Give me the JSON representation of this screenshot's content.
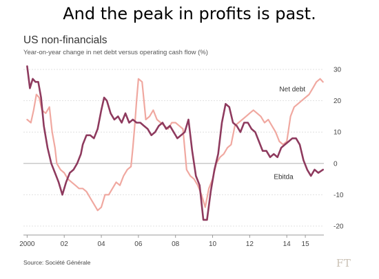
{
  "slide": {
    "title": "And the peak in profits is past."
  },
  "chart": {
    "title": "US non-financials",
    "subtitle": "Year-on-year change in net debt versus operating cash flow (%)",
    "source": "Source: Société Générale",
    "brand": "FT"
  },
  "colors": {
    "net_debt": "#f0a8a0",
    "ebitda": "#8e3a5e",
    "grid": "#d9d9d9",
    "zero_line": "#b8b8b8",
    "axis": "#999999"
  },
  "chart_data": {
    "type": "line",
    "title": "US non-financials",
    "subtitle": "Year-on-year change in net debt versus operating cash flow (%)",
    "xlabel": "",
    "ylabel": "",
    "x_range": [
      1999.8,
      2016.0
    ],
    "ylim": [
      -20,
      30
    ],
    "y_ticks": [
      -20,
      -10,
      0,
      10,
      20,
      30
    ],
    "y_axis_side": "right",
    "x_ticks": [
      {
        "value": 2000,
        "label": "2000"
      },
      {
        "value": 2002,
        "label": "02"
      },
      {
        "value": 2004,
        "label": "04"
      },
      {
        "value": 2006,
        "label": "06"
      },
      {
        "value": 2008,
        "label": "08"
      },
      {
        "value": 2010,
        "label": "10"
      },
      {
        "value": 2012,
        "label": "12"
      },
      {
        "value": 2014,
        "label": "14"
      },
      {
        "value": 2015,
        "label": "15"
      }
    ],
    "grid": "horizontal",
    "series": [
      {
        "name": "Net debt",
        "color": "#f0a8a0",
        "x": [
          2000.0,
          2000.2,
          2000.35,
          2000.5,
          2000.65,
          2000.8,
          2001.0,
          2001.2,
          2001.35,
          2001.5,
          2001.6,
          2001.7,
          2001.8,
          2002.0,
          2002.2,
          2002.4,
          2002.6,
          2002.8,
          2003.0,
          2003.2,
          2003.4,
          2003.6,
          2003.8,
          2004.0,
          2004.2,
          2004.4,
          2004.6,
          2004.8,
          2005.0,
          2005.2,
          2005.4,
          2005.6,
          2005.7,
          2005.8,
          2005.9,
          2006.0,
          2006.2,
          2006.4,
          2006.6,
          2006.8,
          2007.0,
          2007.2,
          2007.4,
          2007.6,
          2007.8,
          2008.0,
          2008.2,
          2008.4,
          2008.6,
          2008.8,
          2009.0,
          2009.2,
          2009.4,
          2009.6,
          2009.8,
          2010.0,
          2010.2,
          2010.4,
          2010.6,
          2010.8,
          2011.0,
          2011.2,
          2011.4,
          2011.6,
          2011.8,
          2012.0,
          2012.2,
          2012.4,
          2012.6,
          2012.8,
          2013.0,
          2013.2,
          2013.4,
          2013.6,
          2013.8,
          2014.0,
          2014.2,
          2014.4,
          2014.6,
          2014.8,
          2015.0,
          2015.2,
          2015.4,
          2015.6,
          2015.8,
          2015.95
        ],
        "y": [
          14,
          13,
          17,
          22,
          21,
          17,
          16,
          18,
          10,
          5,
          0,
          -1,
          -2,
          -3,
          -5,
          -6,
          -7,
          -8,
          -8,
          -9,
          -11,
          -13,
          -15,
          -14,
          -10,
          -10,
          -8,
          -6,
          -7,
          -4,
          -2,
          -1,
          5,
          12,
          20,
          27,
          26,
          14,
          15,
          17,
          14,
          13,
          12,
          11,
          13,
          13,
          12,
          11,
          -2,
          -4,
          -5,
          -7,
          -10,
          -14,
          -8,
          -5,
          0,
          2,
          3,
          5,
          6,
          12,
          13,
          14,
          15,
          16,
          17,
          16,
          15,
          13,
          14,
          12,
          10,
          7,
          6,
          7,
          15,
          18,
          19,
          20,
          21,
          22,
          24,
          26,
          27,
          26
        ]
      },
      {
        "name": "Ebitda",
        "color": "#8e3a5e",
        "x": [
          2000.0,
          2000.15,
          2000.3,
          2000.45,
          2000.6,
          2000.75,
          2000.9,
          2001.1,
          2001.3,
          2001.5,
          2001.7,
          2001.9,
          2002.1,
          2002.3,
          2002.5,
          2002.7,
          2002.9,
          2003.0,
          2003.2,
          2003.4,
          2003.6,
          2003.8,
          2004.0,
          2004.15,
          2004.3,
          2004.5,
          2004.7,
          2004.9,
          2005.1,
          2005.3,
          2005.5,
          2005.7,
          2005.9,
          2006.1,
          2006.3,
          2006.5,
          2006.7,
          2006.9,
          2007.1,
          2007.3,
          2007.5,
          2007.7,
          2007.9,
          2008.1,
          2008.3,
          2008.5,
          2008.7,
          2008.9,
          2009.1,
          2009.3,
          2009.5,
          2009.7,
          2009.9,
          2010.1,
          2010.3,
          2010.5,
          2010.7,
          2010.9,
          2011.1,
          2011.3,
          2011.5,
          2011.7,
          2011.9,
          2012.1,
          2012.3,
          2012.5,
          2012.7,
          2012.9,
          2013.1,
          2013.3,
          2013.5,
          2013.7,
          2013.9,
          2014.1,
          2014.3,
          2014.5,
          2014.7,
          2014.9,
          2015.1,
          2015.3,
          2015.5,
          2015.7,
          2015.95
        ],
        "y": [
          31,
          24,
          27,
          26,
          26,
          21,
          12,
          5,
          0,
          -3,
          -6,
          -10,
          -6,
          -3,
          -2,
          0,
          3,
          6,
          9,
          9,
          8,
          11,
          17,
          21,
          20,
          16,
          14,
          15,
          13,
          16,
          13,
          14,
          13,
          13,
          12,
          11,
          9,
          10,
          12,
          13,
          11,
          12,
          10,
          8,
          9,
          10,
          14,
          4,
          -4,
          -7,
          -18,
          -18,
          -9,
          -2,
          3,
          13,
          19,
          18,
          13,
          12,
          10,
          13,
          13,
          11,
          10,
          7,
          4,
          4,
          2,
          3,
          2,
          5,
          6,
          7,
          8,
          8,
          6,
          1,
          -2,
          -4,
          -2,
          -3,
          -2
        ]
      }
    ],
    "annotations": [
      {
        "text": "Net debt",
        "series": "Net debt",
        "x": 2013.6,
        "y": 23
      },
      {
        "text": "Ebitda",
        "series": "Ebitda",
        "x": 2013.3,
        "y": -5
      }
    ]
  }
}
